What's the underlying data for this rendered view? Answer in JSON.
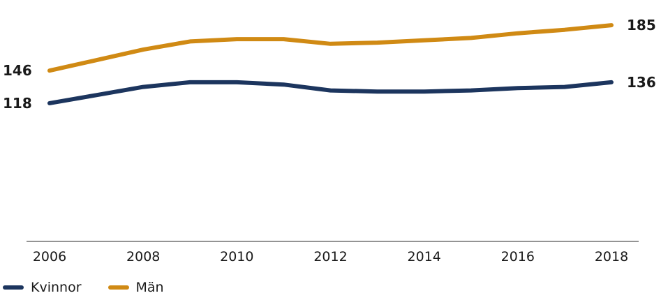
{
  "chart_data": {
    "type": "line",
    "x": [
      2006,
      2007,
      2008,
      2009,
      2010,
      2011,
      2012,
      2013,
      2014,
      2015,
      2016,
      2017,
      2018
    ],
    "xticks": [
      "2006",
      "2008",
      "2010",
      "2012",
      "2014",
      "2016",
      "2018"
    ],
    "series": [
      {
        "name": "Kvinnor",
        "color": "#1c355e",
        "values": [
          118,
          125,
          132,
          136,
          136,
          134,
          129,
          128,
          128,
          129,
          131,
          132,
          136
        ],
        "start_label": "118",
        "end_label": "136"
      },
      {
        "name": "Män",
        "color": "#d08a14",
        "values": [
          146,
          155,
          164,
          171,
          173,
          173,
          169,
          170,
          172,
          174,
          178,
          181,
          185
        ],
        "start_label": "146",
        "end_label": "185"
      }
    ],
    "title": "",
    "xlabel": "",
    "ylabel": "",
    "ylim": [
      0,
      200
    ],
    "grid": false,
    "legend_position": "bottom-left"
  }
}
